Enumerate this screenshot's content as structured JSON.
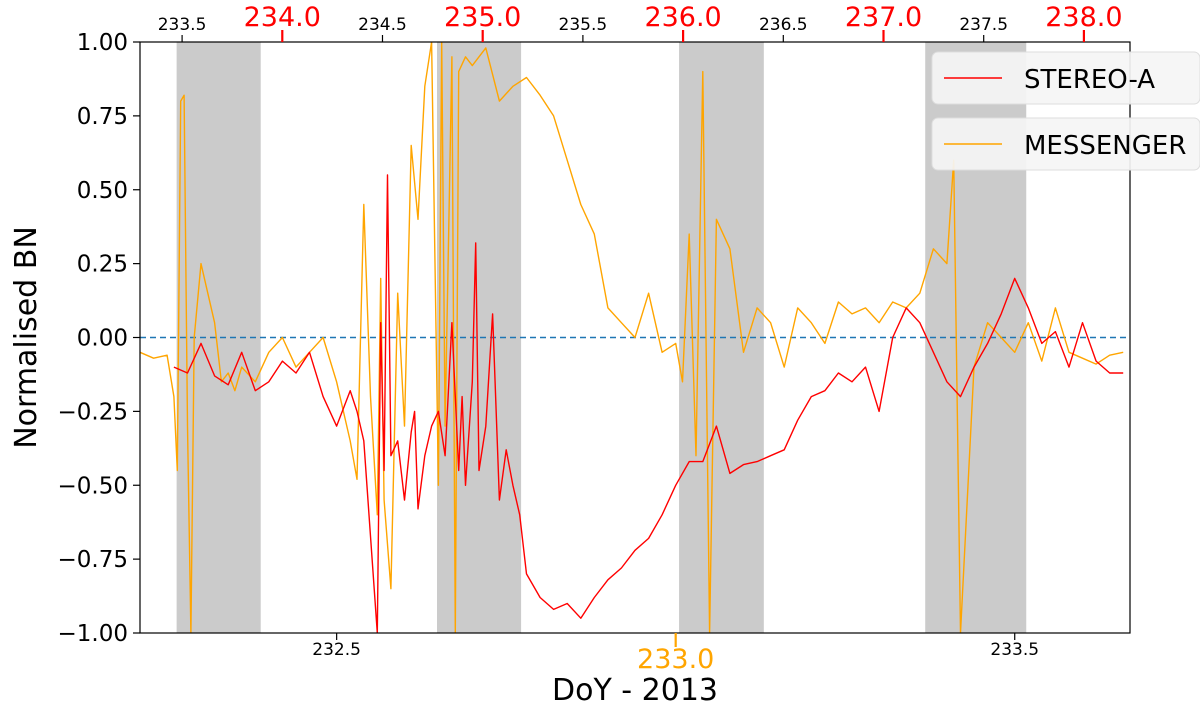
{
  "chart_data": {
    "type": "line",
    "title": "",
    "xlabel": "DoY - 2013",
    "ylabel": "Normalised BN",
    "ylim": [
      -1.0,
      1.0
    ],
    "grid": false,
    "legend_position": "top-right",
    "colors": {
      "stereo": "#ff0000",
      "messenger": "#ffa500",
      "zero_line": "#1f77b4",
      "shade": "#c8c8c8",
      "top_major_ticks": "#ff0000",
      "bottom_major_ticks": "#ffa500"
    },
    "bottom_axis": {
      "label": "DoY - 2013",
      "range": [
        232.21,
        233.67
      ],
      "ticks": [
        {
          "value": 232.5,
          "label": "232.5",
          "major": false
        },
        {
          "value": 233.0,
          "label": "233.0",
          "major": true
        },
        {
          "value": 233.5,
          "label": "233.5",
          "major": false
        }
      ]
    },
    "top_axis": {
      "range": [
        233.29,
        238.23
      ],
      "ticks": [
        {
          "value": 233.5,
          "label": "233.5",
          "major": false
        },
        {
          "value": 234.0,
          "label": "234.0",
          "major": true
        },
        {
          "value": 234.5,
          "label": "234.5",
          "major": false
        },
        {
          "value": 235.0,
          "label": "235.0",
          "major": true
        },
        {
          "value": 235.5,
          "label": "235.5",
          "major": false
        },
        {
          "value": 236.0,
          "label": "236.0",
          "major": true
        },
        {
          "value": 236.5,
          "label": "236.5",
          "major": false
        },
        {
          "value": 237.0,
          "label": "237.0",
          "major": true
        },
        {
          "value": 237.5,
          "label": "237.5",
          "major": false
        },
        {
          "value": 238.0,
          "label": "238.0",
          "major": true
        }
      ]
    },
    "y_ticks": [
      {
        "value": 1.0,
        "label": "1.00"
      },
      {
        "value": 0.75,
        "label": "0.75"
      },
      {
        "value": 0.5,
        "label": "0.50"
      },
      {
        "value": 0.25,
        "label": "0.25"
      },
      {
        "value": 0.0,
        "label": "0.00"
      },
      {
        "value": -0.25,
        "label": "−0.25"
      },
      {
        "value": -0.5,
        "label": "−0.50"
      },
      {
        "value": -0.75,
        "label": "−0.75"
      },
      {
        "value": -1.0,
        "label": "−1.00"
      }
    ],
    "reference_line": {
      "y": 0.0,
      "style": "dashed"
    },
    "shaded_regions": [
      {
        "x0": 232.264,
        "x1": 232.388
      },
      {
        "x0": 232.648,
        "x1": 232.772
      },
      {
        "x0": 233.005,
        "x1": 233.13
      },
      {
        "x0": 233.368,
        "x1": 233.517
      }
    ],
    "series": [
      {
        "name": "STEREO-A",
        "axis": "bottom",
        "x": [
          232.26,
          232.28,
          232.3,
          232.32,
          232.34,
          232.36,
          232.38,
          232.4,
          232.42,
          232.44,
          232.46,
          232.48,
          232.5,
          232.52,
          232.53,
          232.54,
          232.56,
          232.565,
          232.57,
          232.575,
          232.58,
          232.59,
          232.6,
          232.61,
          232.615,
          232.62,
          232.63,
          232.64,
          232.65,
          232.66,
          232.67,
          232.68,
          232.685,
          232.69,
          232.7,
          232.705,
          232.71,
          232.72,
          232.73,
          232.74,
          232.75,
          232.76,
          232.77,
          232.78,
          232.8,
          232.82,
          232.84,
          232.86,
          232.88,
          232.9,
          232.92,
          232.94,
          232.96,
          232.98,
          233.0,
          233.02,
          233.04,
          233.06,
          233.08,
          233.1,
          233.12,
          233.14,
          233.16,
          233.18,
          233.2,
          233.22,
          233.24,
          233.26,
          233.28,
          233.3,
          233.32,
          233.34,
          233.36,
          233.38,
          233.4,
          233.42,
          233.44,
          233.46,
          233.48,
          233.5,
          233.52,
          233.54,
          233.56,
          233.58,
          233.6,
          233.62,
          233.64,
          233.66
        ],
        "y": [
          -0.1,
          -0.12,
          -0.02,
          -0.13,
          -0.16,
          -0.05,
          -0.18,
          -0.15,
          -0.08,
          -0.12,
          -0.05,
          -0.2,
          -0.3,
          -0.18,
          -0.25,
          -0.35,
          -1.0,
          0.05,
          -0.45,
          0.55,
          -0.4,
          -0.35,
          -0.55,
          -0.32,
          -0.25,
          -0.58,
          -0.4,
          -0.3,
          -0.25,
          -0.4,
          0.05,
          -0.45,
          -0.2,
          -0.5,
          -0.15,
          0.32,
          -0.45,
          -0.3,
          0.08,
          -0.55,
          -0.38,
          -0.5,
          -0.6,
          -0.8,
          -0.88,
          -0.92,
          -0.9,
          -0.95,
          -0.88,
          -0.82,
          -0.78,
          -0.72,
          -0.68,
          -0.6,
          -0.5,
          -0.42,
          -0.42,
          -0.3,
          -0.46,
          -0.43,
          -0.42,
          -0.4,
          -0.38,
          -0.28,
          -0.2,
          -0.18,
          -0.12,
          -0.15,
          -0.1,
          -0.25,
          0.0,
          0.1,
          0.05,
          -0.05,
          -0.15,
          -0.2,
          -0.1,
          -0.02,
          0.08,
          0.2,
          0.1,
          -0.02,
          0.02,
          -0.1,
          0.05,
          -0.08,
          -0.12,
          -0.12
        ]
      },
      {
        "name": "MESSENGER",
        "axis": "bottom",
        "x": [
          232.21,
          232.23,
          232.25,
          232.26,
          232.265,
          232.27,
          232.275,
          232.28,
          232.285,
          232.29,
          232.3,
          232.31,
          232.32,
          232.33,
          232.34,
          232.35,
          232.36,
          232.38,
          232.4,
          232.42,
          232.44,
          232.46,
          232.48,
          232.5,
          232.52,
          232.53,
          232.54,
          232.55,
          232.56,
          232.565,
          232.57,
          232.58,
          232.59,
          232.6,
          232.61,
          232.62,
          232.63,
          232.64,
          232.65,
          232.655,
          232.66,
          232.67,
          232.675,
          232.68,
          232.69,
          232.7,
          232.72,
          232.74,
          232.76,
          232.78,
          232.8,
          232.82,
          232.84,
          232.86,
          232.88,
          232.9,
          232.92,
          232.94,
          232.96,
          232.98,
          233.0,
          233.01,
          233.02,
          233.03,
          233.04,
          233.05,
          233.06,
          233.08,
          233.1,
          233.12,
          233.14,
          233.16,
          233.18,
          233.2,
          233.22,
          233.24,
          233.26,
          233.28,
          233.3,
          233.32,
          233.34,
          233.36,
          233.38,
          233.4,
          233.41,
          233.42,
          233.44,
          233.46,
          233.48,
          233.5,
          233.52,
          233.54,
          233.56,
          233.58,
          233.6,
          233.62,
          233.64,
          233.66
        ],
        "y": [
          -0.05,
          -0.07,
          -0.06,
          -0.2,
          -0.45,
          0.8,
          0.82,
          -0.3,
          -1.0,
          0.0,
          0.25,
          0.15,
          0.05,
          -0.15,
          -0.12,
          -0.18,
          -0.1,
          -0.15,
          -0.05,
          0.0,
          -0.1,
          -0.05,
          0.0,
          -0.15,
          -0.35,
          -0.48,
          0.45,
          -0.2,
          -0.6,
          0.2,
          -0.55,
          -0.85,
          0.15,
          -0.3,
          0.65,
          0.4,
          0.85,
          1.0,
          -0.5,
          1.0,
          -0.3,
          0.95,
          -1.0,
          0.9,
          0.95,
          0.92,
          0.98,
          0.8,
          0.85,
          0.88,
          0.82,
          0.75,
          0.6,
          0.45,
          0.35,
          0.1,
          0.05,
          0.0,
          0.15,
          -0.05,
          -0.02,
          -0.15,
          0.35,
          -0.4,
          0.9,
          -1.0,
          0.4,
          0.3,
          -0.05,
          0.1,
          0.05,
          -0.1,
          0.1,
          0.05,
          -0.02,
          0.12,
          0.08,
          0.1,
          0.05,
          0.12,
          0.1,
          0.15,
          0.3,
          0.25,
          0.6,
          -1.0,
          -0.1,
          0.05,
          0.0,
          -0.05,
          0.05,
          -0.08,
          0.1,
          -0.05,
          -0.07,
          -0.09,
          -0.06,
          -0.05
        ]
      }
    ]
  }
}
